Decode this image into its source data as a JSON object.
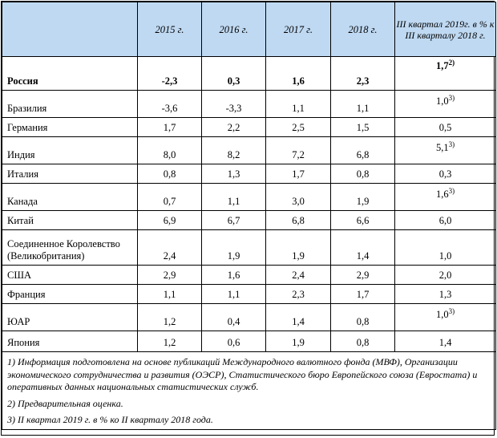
{
  "header": {
    "columns": [
      "2015 г.",
      "2016 г.",
      "2017 г.",
      "2018 г.",
      "III квартал 2019г. в % к III кварталу 2018 г."
    ]
  },
  "rows": [
    {
      "country": "Россия",
      "values": [
        "-2,3",
        "0,3",
        "1,6",
        "2,3"
      ],
      "last": "1,7",
      "note": "2)"
    },
    {
      "country": "Бразилия",
      "values": [
        "-3,6",
        "-3,3",
        "1,1",
        "1,1"
      ],
      "last": "1,0",
      "note": "3)"
    },
    {
      "country": "Германия",
      "values": [
        "1,7",
        "2,2",
        "2,5",
        "1,5"
      ],
      "last": "0,5",
      "note": ""
    },
    {
      "country": "Индия",
      "values": [
        "8,0",
        "8,2",
        "7,2",
        "6,8"
      ],
      "last": "5,1",
      "note": "3)"
    },
    {
      "country": "Италия",
      "values": [
        "0,8",
        "1,3",
        "1,7",
        "0,8"
      ],
      "last": "0,3",
      "note": ""
    },
    {
      "country": "Канада",
      "values": [
        "0,7",
        "1,1",
        "3,0",
        "1,9"
      ],
      "last": "1,6",
      "note": "3)"
    },
    {
      "country": "Китай",
      "values": [
        "6,9",
        "6,7",
        "6,8",
        "6,6"
      ],
      "last": "6,0",
      "note": ""
    },
    {
      "country": "Соединенное Королевство (Великобритания)",
      "values": [
        "2,4",
        "1,9",
        "1,9",
        "1,4"
      ],
      "last": "1,0",
      "note": ""
    },
    {
      "country": "США",
      "values": [
        "2,9",
        "1,6",
        "2,4",
        "2,9"
      ],
      "last": "2,0",
      "note": ""
    },
    {
      "country": "Франция",
      "values": [
        "1,1",
        "1,1",
        "2,3",
        "1,7"
      ],
      "last": "1,3",
      "note": ""
    },
    {
      "country": "ЮАР",
      "values": [
        "1,2",
        "0,4",
        "1,4",
        "0,8"
      ],
      "last": "1,0",
      "note": "3)"
    },
    {
      "country": "Япония",
      "values": [
        "1,2",
        "0,6",
        "1,9",
        "0,8"
      ],
      "last": "1,4",
      "note": ""
    }
  ],
  "footnotes": [
    "1) Информация подготовлена на основе публикаций Международного валютного фонда (МВФ), Организации экономического сотрудничества и развития (ОЭСР), Статистического бюро Европейского союза (Евростата) и оперативных данных национальных статистических служб.",
    "2) Предварительная оценка.",
    "3) II квартал 2019 г. в % ко II кварталу 2018 года."
  ]
}
